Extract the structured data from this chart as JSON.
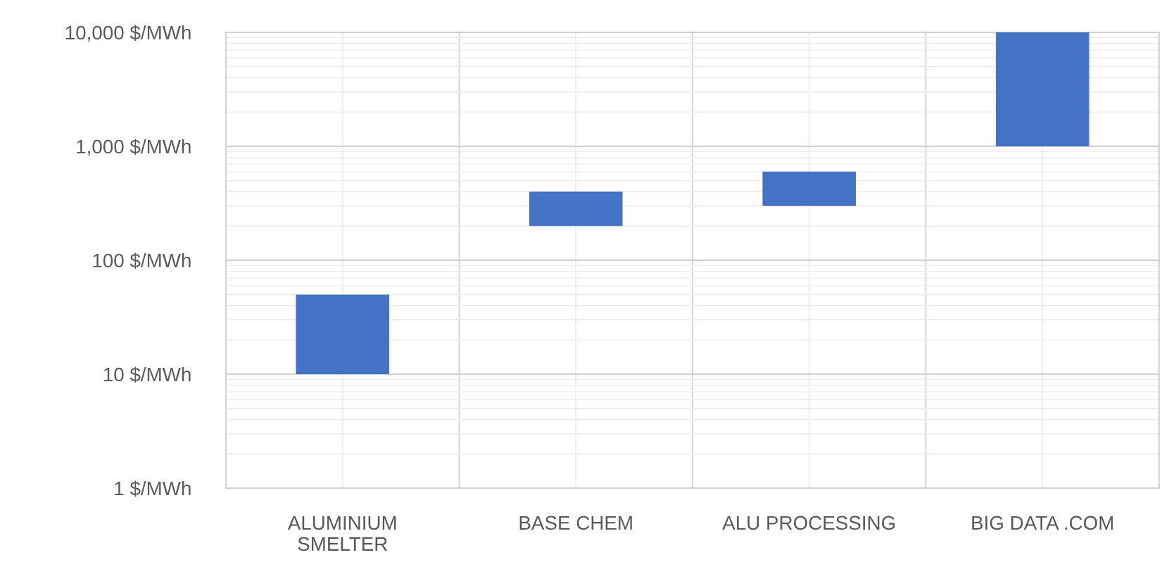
{
  "chart_data": {
    "type": "bar",
    "log": true,
    "grid": true,
    "color": "#4472c4",
    "categories": [
      "ALUMINIUM\nSMELTER",
      "BASE CHEM",
      "ALU PROCESSING",
      "BIG DATA .COM"
    ],
    "base": [
      10,
      200,
      300,
      1000
    ],
    "values": [
      40,
      200,
      300,
      9000
    ],
    "ylim": [
      1,
      10000
    ],
    "yticks": [
      {
        "value": 1,
        "label": "1 $/MWh"
      },
      {
        "value": 10,
        "label": "10 $/MWh"
      },
      {
        "value": 100,
        "label": "100 $/MWh"
      },
      {
        "value": 1000,
        "label": "1,000 $/MWh"
      },
      {
        "value": 10000,
        "label": "10,000 $/MWh"
      }
    ]
  }
}
